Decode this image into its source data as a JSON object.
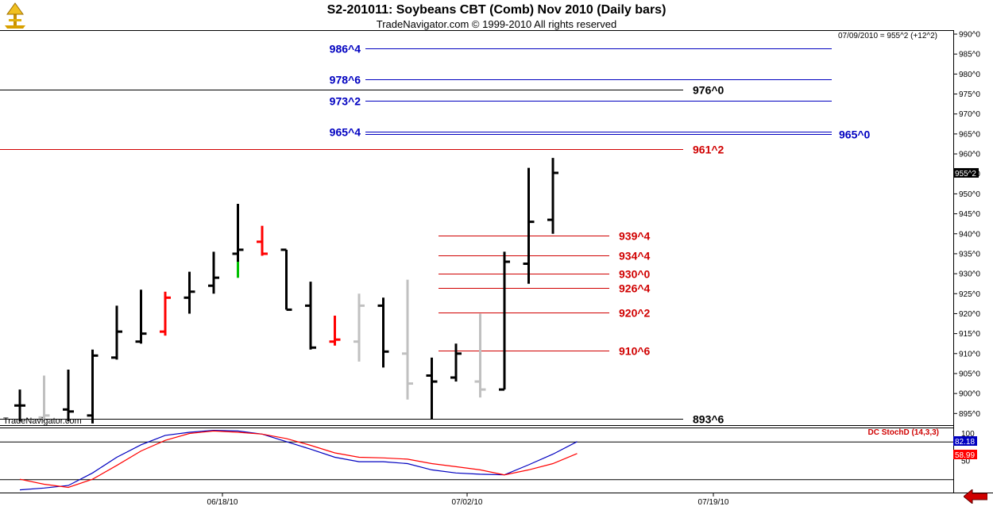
{
  "header": {
    "title": "S2-201011:  Soybeans CBT (Comb) Nov 2010  (Daily bars)",
    "subtitle": "TradeNavigator.com © 1999-2010 All rights reserved"
  },
  "watermark": "TradeNavigator.com",
  "last_quote": "07/09/2010 = 955^2 (+12^2)",
  "last_price_tag": "955^2",
  "colors": {
    "up_bar": "#000000",
    "down_bar": "#ff0000",
    "neutral_bar": "#c0c0c0",
    "reversal_green": "#00c000",
    "level_blue": "#0000c0",
    "level_red": "#d00000",
    "level_black": "#000000",
    "stoch_k": "#0000c0",
    "stoch_d": "#d00000",
    "back_arrow": "#d00000"
  },
  "chart_data": [
    {
      "type": "ohlc",
      "title": "S2-201011:  Soybeans CBT (Comb) Nov 2010  (Daily bars)",
      "x_tick_labels": [
        "06/18/10",
        "07/02/10",
        "07/19/10"
      ],
      "y_tick_labels": [
        "895^0",
        "900^0",
        "905^0",
        "910^0",
        "915^0",
        "920^0",
        "925^0",
        "930^0",
        "935^0",
        "940^0",
        "945^0",
        "950^0",
        "955^0",
        "960^0",
        "965^0",
        "970^0",
        "975^0",
        "980^0",
        "985^0",
        "990^0"
      ],
      "ylim": [
        892,
        991
      ],
      "bars": [
        {
          "o": 897,
          "h": 901,
          "l": 893,
          "c": 897,
          "color": "black"
        },
        {
          "o": 894,
          "h": 904.5,
          "l": 893,
          "c": 894.5,
          "color": "gray"
        },
        {
          "o": 896,
          "h": 906,
          "l": 893,
          "c": 895.5,
          "color": "black"
        },
        {
          "o": 894.5,
          "h": 911,
          "l": 892.5,
          "c": 909.5,
          "color": "black"
        },
        {
          "o": 909,
          "h": 922,
          "l": 908.5,
          "c": 915.5,
          "color": "black"
        },
        {
          "o": 913,
          "h": 926,
          "l": 912.5,
          "c": 915,
          "color": "black"
        },
        {
          "o": 915.5,
          "h": 925.5,
          "l": 914.5,
          "c": 924,
          "color": "red"
        },
        {
          "o": 924,
          "h": 930.5,
          "l": 920,
          "c": 925.5,
          "color": "black"
        },
        {
          "o": 927,
          "h": 935.5,
          "l": 925,
          "c": 929,
          "color": "black"
        },
        {
          "o": 935,
          "h": 947.5,
          "l": 929,
          "c": 936,
          "color": "black",
          "tail_color": "green",
          "tail_from": 933
        },
        {
          "o": 938,
          "h": 942,
          "l": 934.5,
          "c": 935,
          "color": "red"
        },
        {
          "o": 936,
          "h": 936,
          "l": 921,
          "c": 921,
          "color": "black"
        },
        {
          "o": 922,
          "h": 928,
          "l": 911,
          "c": 911.5,
          "color": "black"
        },
        {
          "o": 913,
          "h": 919.5,
          "l": 912,
          "c": 913.5,
          "color": "red"
        },
        {
          "o": 913,
          "h": 925,
          "l": 908,
          "c": 922,
          "color": "gray"
        },
        {
          "o": 922,
          "h": 924,
          "l": 906.5,
          "c": 910.5,
          "color": "black"
        },
        {
          "o": 910,
          "h": 928.5,
          "l": 898.5,
          "c": 902.5,
          "color": "gray"
        },
        {
          "o": 904.5,
          "h": 909,
          "l": 893.5,
          "c": 903,
          "color": "black"
        },
        {
          "o": 904,
          "h": 912.5,
          "l": 903,
          "c": 910,
          "color": "black"
        },
        {
          "o": 903,
          "h": 920,
          "l": 899,
          "c": 901,
          "color": "gray"
        },
        {
          "o": 901,
          "h": 935.5,
          "l": 901,
          "c": 933,
          "color": "black"
        },
        {
          "o": 932.5,
          "h": 956.5,
          "l": 927.5,
          "c": 943,
          "color": "black"
        },
        {
          "o": 943.5,
          "h": 959,
          "l": 940,
          "c": 955.25,
          "color": "black"
        }
      ],
      "levels": [
        {
          "label": "986^4",
          "value": 986.5,
          "color": "blue",
          "side": "left",
          "span": "mid"
        },
        {
          "label": "978^6",
          "value": 978.75,
          "color": "blue",
          "side": "left",
          "span": "mid"
        },
        {
          "label": "976^0",
          "value": 976.0,
          "color": "black",
          "side": "right",
          "span": "full"
        },
        {
          "label": "973^2",
          "value": 973.25,
          "color": "blue",
          "side": "left",
          "span": "mid"
        },
        {
          "label": "965^4",
          "value": 965.5,
          "color": "blue",
          "side": "left",
          "span": "mid"
        },
        {
          "label": "965^0",
          "value": 965.0,
          "color": "blue",
          "side": "far-right",
          "span": "mid"
        },
        {
          "label": "961^2",
          "value": 961.25,
          "color": "red",
          "side": "right",
          "span": "full"
        },
        {
          "label": "939^4",
          "value": 939.5,
          "color": "red",
          "side": "right",
          "span": "short"
        },
        {
          "label": "934^4",
          "value": 934.5,
          "color": "red",
          "side": "right",
          "span": "short"
        },
        {
          "label": "930^0",
          "value": 930.0,
          "color": "red",
          "side": "right",
          "span": "short"
        },
        {
          "label": "926^4",
          "value": 926.5,
          "color": "red",
          "side": "right",
          "span": "short"
        },
        {
          "label": "920^2",
          "value": 920.25,
          "color": "red",
          "side": "right",
          "span": "short"
        },
        {
          "label": "910^6",
          "value": 910.75,
          "color": "red",
          "side": "right",
          "span": "short"
        },
        {
          "label": "893^6",
          "value": 893.75,
          "color": "black",
          "side": "right",
          "span": "full"
        }
      ]
    },
    {
      "type": "line",
      "title": "DC StochD (14,3,3)",
      "y_tick_labels": [
        "100",
        "50"
      ],
      "ylim": [
        0,
        100
      ],
      "guide_lines": [
        80,
        20
      ],
      "series": [
        {
          "name": "K",
          "color": "blue",
          "values": [
            3,
            6,
            10,
            30,
            55,
            75,
            90,
            95,
            98,
            97,
            92,
            80,
            68,
            55,
            48,
            48,
            45,
            35,
            30,
            28,
            27,
            43,
            60,
            80
          ],
          "last_label": "82.18"
        },
        {
          "name": "D",
          "color": "red",
          "values": [
            20,
            12,
            7,
            20,
            42,
            65,
            82,
            93,
            97,
            95,
            92,
            85,
            74,
            62,
            55,
            54,
            52,
            45,
            40,
            35,
            27,
            35,
            45,
            61
          ],
          "last_label": "58.99"
        }
      ]
    }
  ]
}
